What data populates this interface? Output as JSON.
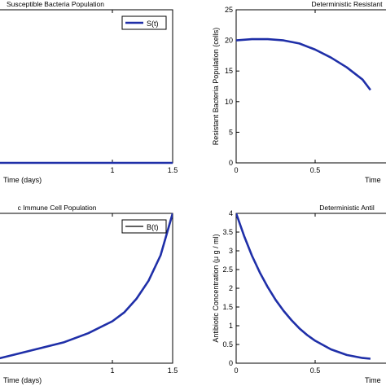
{
  "chart_data": [
    {
      "type": "line",
      "title": "Susceptible Bacteria Population",
      "xlabel": "Time (days)",
      "ylabel": "",
      "xlim": [
        0,
        1.5
      ],
      "ylim": [
        0,
        1
      ],
      "xticks": [
        1,
        1.5
      ],
      "xtick_labels": [
        "1",
        "1.5"
      ],
      "yticks": [],
      "ytick_labels": [],
      "legend": "top-right",
      "grid": false,
      "series": [
        {
          "name": "S(t)",
          "color": "#1f2fa8",
          "line": "thick",
          "x": [
            0,
            0.5,
            1,
            1.5
          ],
          "y": [
            0,
            0,
            0,
            0
          ]
        }
      ]
    },
    {
      "type": "line",
      "title": "Deterministic Resistant",
      "xlabel": "Time",
      "ylabel": "Resistant Bacteria Population (cells)",
      "xlim": [
        0,
        1
      ],
      "ylim": [
        0,
        25
      ],
      "xticks": [
        0,
        0.5
      ],
      "xtick_labels": [
        "0",
        "0.5"
      ],
      "yticks": [
        0,
        5,
        10,
        15,
        20,
        25
      ],
      "ytick_labels": [
        "0",
        "5",
        "10",
        "15",
        "20",
        "25"
      ],
      "legend": "none",
      "grid": false,
      "series": [
        {
          "color": "#1f2fa8",
          "line": "thick",
          "x": [
            0,
            0.1,
            0.2,
            0.3,
            0.4,
            0.5,
            0.6,
            0.7,
            0.8,
            0.85
          ],
          "y": [
            20.0,
            20.2,
            20.2,
            20.0,
            19.5,
            18.5,
            17.2,
            15.6,
            13.6,
            11.9
          ]
        }
      ]
    },
    {
      "type": "line",
      "title": "c Immune Cell Population",
      "xlabel": "Time (days)",
      "ylabel": "",
      "xlim": [
        0,
        1.5
      ],
      "ylim": [
        0,
        1
      ],
      "xticks": [
        1,
        1.5
      ],
      "xtick_labels": [
        "1",
        "1.5"
      ],
      "yticks": [],
      "ytick_labels": [],
      "legend": "top-right",
      "grid": false,
      "series": [
        {
          "name": "B(t)",
          "color": "#1f2fa8",
          "line": "thick",
          "x": [
            0,
            0.2,
            0.4,
            0.6,
            0.8,
            1.0,
            1.1,
            1.2,
            1.3,
            1.4,
            1.5
          ],
          "y": [
            0.02,
            0.06,
            0.1,
            0.14,
            0.2,
            0.28,
            0.34,
            0.43,
            0.55,
            0.72,
            1.0
          ]
        }
      ]
    },
    {
      "type": "line",
      "title": "Deterministic Antil",
      "xlabel": "Time",
      "ylabel": "Antibiotic Concentration (μ g / ml)",
      "xlim": [
        0,
        1
      ],
      "ylim": [
        0,
        4
      ],
      "xticks": [
        0,
        0.5
      ],
      "xtick_labels": [
        "0",
        "0.5"
      ],
      "yticks": [
        0,
        0.5,
        1,
        1.5,
        2,
        2.5,
        3,
        3.5,
        4
      ],
      "ytick_labels": [
        "0",
        "0.5",
        "1",
        "1.5",
        "2",
        "2.5",
        "3",
        "3.5",
        "4"
      ],
      "legend": "none",
      "grid": false,
      "series": [
        {
          "color": "#1f2fa8",
          "line": "thick",
          "x": [
            0,
            0.05,
            0.1,
            0.15,
            0.2,
            0.25,
            0.3,
            0.35,
            0.4,
            0.45,
            0.5,
            0.6,
            0.7,
            0.8,
            0.85
          ],
          "y": [
            4.0,
            3.4,
            2.87,
            2.42,
            2.03,
            1.69,
            1.4,
            1.15,
            0.93,
            0.75,
            0.6,
            0.37,
            0.22,
            0.14,
            0.12
          ]
        }
      ]
    }
  ]
}
